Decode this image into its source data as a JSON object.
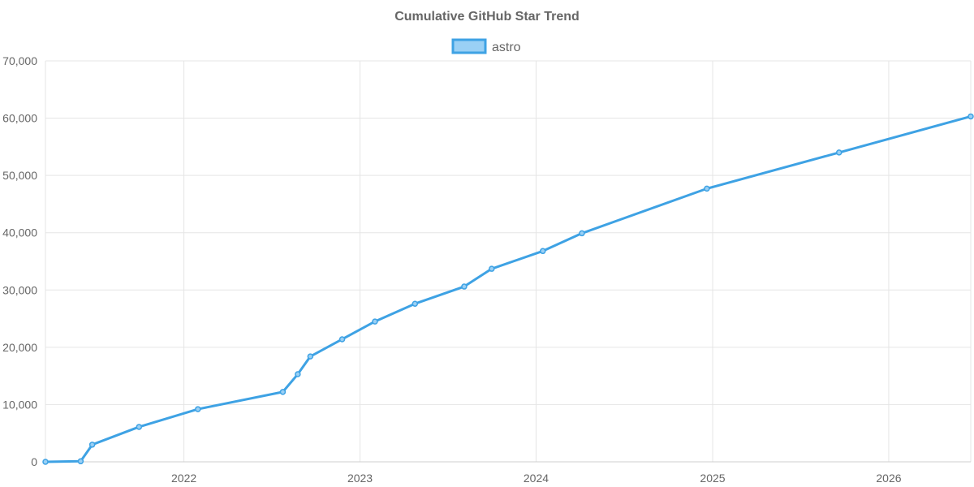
{
  "chart_data": {
    "type": "line",
    "title": "Cumulative GitHub Star Trend",
    "xlabel": "",
    "ylabel": "",
    "legend": "top",
    "grid": true,
    "x_axis": {
      "range": [
        "2021-03-20",
        "2026-06-20"
      ],
      "ticks": [
        {
          "label": "2022",
          "date": "2022-01-01"
        },
        {
          "label": "2023",
          "date": "2023-01-01"
        },
        {
          "label": "2024",
          "date": "2024-01-01"
        },
        {
          "label": "2025",
          "date": "2025-01-01"
        },
        {
          "label": "2026",
          "date": "2026-01-01"
        }
      ]
    },
    "y_axis": {
      "range": [
        0,
        70000
      ],
      "ticks": [
        0,
        10000,
        20000,
        30000,
        40000,
        50000,
        60000,
        70000
      ],
      "tick_labels": [
        "0",
        "10,000",
        "20,000",
        "30,000",
        "40,000",
        "50,000",
        "60,000",
        "70,000"
      ]
    },
    "series": [
      {
        "name": "astro",
        "color": "#3ea2e4",
        "fill": "#9ad0f5",
        "points": [
          {
            "x": "2021-03-20",
            "y": 0
          },
          {
            "x": "2021-06-01",
            "y": 100
          },
          {
            "x": "2021-06-25",
            "y": 3000
          },
          {
            "x": "2021-09-30",
            "y": 6100
          },
          {
            "x": "2022-01-30",
            "y": 9200
          },
          {
            "x": "2022-07-25",
            "y": 12200
          },
          {
            "x": "2022-08-25",
            "y": 15300
          },
          {
            "x": "2022-09-20",
            "y": 18400
          },
          {
            "x": "2022-11-25",
            "y": 21400
          },
          {
            "x": "2023-02-01",
            "y": 24500
          },
          {
            "x": "2023-04-25",
            "y": 27600
          },
          {
            "x": "2023-08-05",
            "y": 30600
          },
          {
            "x": "2023-10-01",
            "y": 33700
          },
          {
            "x": "2024-01-15",
            "y": 36800
          },
          {
            "x": "2024-04-05",
            "y": 39900
          },
          {
            "x": "2024-12-20",
            "y": 47700
          },
          {
            "x": "2025-09-20",
            "y": 54000
          },
          {
            "x": "2026-06-20",
            "y": 60300
          }
        ]
      }
    ]
  }
}
